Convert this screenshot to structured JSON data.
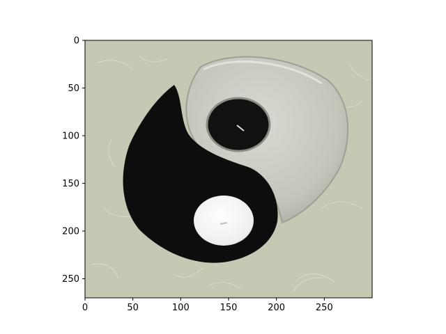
{
  "figure": {
    "x_axis": {
      "range": [
        0,
        300
      ],
      "ticks": [
        {
          "value": 0,
          "label": "0"
        },
        {
          "value": 50,
          "label": "50"
        },
        {
          "value": 100,
          "label": "100"
        },
        {
          "value": 150,
          "label": "150"
        },
        {
          "value": 200,
          "label": "200"
        },
        {
          "value": 250,
          "label": "250"
        }
      ]
    },
    "y_axis": {
      "range": [
        0,
        270
      ],
      "inverted": true,
      "ticks": [
        {
          "value": 0,
          "label": "0"
        },
        {
          "value": 50,
          "label": "50"
        },
        {
          "value": 100,
          "label": "100"
        },
        {
          "value": 150,
          "label": "150"
        },
        {
          "value": 200,
          "label": "200"
        },
        {
          "value": 250,
          "label": "250"
        }
      ]
    },
    "image": {
      "subject": "yin-yang",
      "colors": {
        "background": "#c6c8b3",
        "yin": "#0d0d0d",
        "yang_glass": "#c9cbc1",
        "yang_edge": "#9ea097",
        "white_candle": "#f2f2f2",
        "black_candle": "#111111",
        "frame": "#000000"
      }
    }
  }
}
